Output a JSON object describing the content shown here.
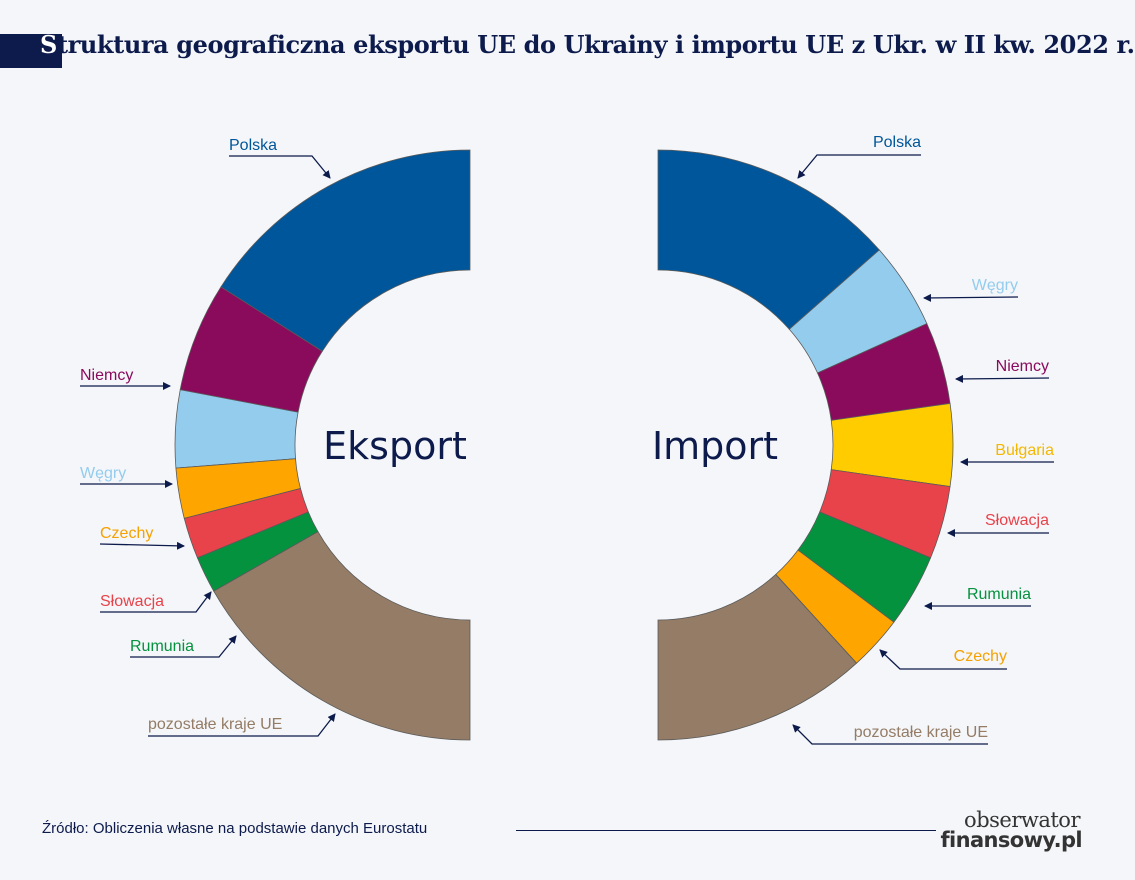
{
  "title": {
    "initial": "S",
    "rest": "truktura geograficzna eksportu UE do Ukrainy i importu UE z Ukr. w II kw. 2022 r."
  },
  "source": "Źródło: Obliczenia własne na podstawie danych Eurostatu",
  "logo": {
    "line1": "obserwator",
    "line2": "finansowy.pl"
  },
  "colors": {
    "Polska": "#00569a",
    "Niemcy": "#8a0a5c",
    "Węgry": "#94ccee",
    "Czechy": "#ffa500",
    "Słowacja": "#e8424a",
    "Rumunia": "#05923f",
    "Bułgaria": "#ffcc00",
    "pozostałe kraje UE": "#947c66",
    "label_text": {
      "Polska": "#00569a",
      "Niemcy": "#8a0a5c",
      "Węgry": "#94ccee",
      "Czechy": "#f5a100",
      "Słowacja": "#e8424a",
      "Rumunia": "#05923f",
      "Bułgaria": "#f5b800",
      "pozostałe kraje UE": "#947c66"
    },
    "arrow": "#0d1b4c"
  },
  "chart_data": [
    {
      "type": "pie",
      "title": "Eksport",
      "units": "% (approx., read from half-donut)",
      "slices": [
        {
          "label": "Polska",
          "value": 32
        },
        {
          "label": "Niemcy",
          "value": 12
        },
        {
          "label": "Węgry",
          "value": 8.5
        },
        {
          "label": "Czechy",
          "value": 5.5
        },
        {
          "label": "Słowacja",
          "value": 4.5
        },
        {
          "label": "Rumunia",
          "value": 4
        },
        {
          "label": "pozostałe kraje UE",
          "value": 33.5
        }
      ]
    },
    {
      "type": "pie",
      "title": "Import",
      "units": "% (approx., read from half-donut)",
      "slices": [
        {
          "label": "Polska",
          "value": 27
        },
        {
          "label": "Węgry",
          "value": 9.5
        },
        {
          "label": "Niemcy",
          "value": 9
        },
        {
          "label": "Bułgaria",
          "value": 9
        },
        {
          "label": "Słowacja",
          "value": 8
        },
        {
          "label": "Rumunia",
          "value": 8
        },
        {
          "label": "Czechy",
          "value": 6
        },
        {
          "label": "pozostałe kraje UE",
          "value": 23.5
        }
      ]
    }
  ]
}
